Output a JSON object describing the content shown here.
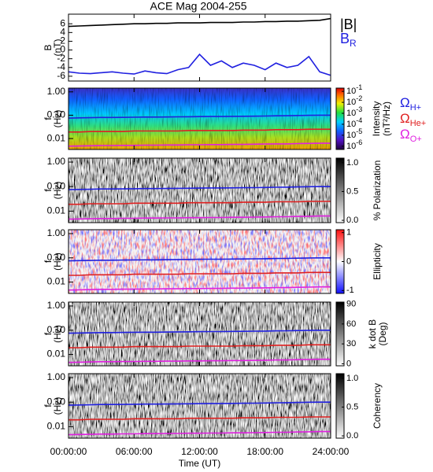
{
  "chart_data": [
    {
      "type": "line",
      "title": "ACE Mag 2004-255",
      "ylabel": [
        "B",
        "(nT)"
      ],
      "x": [
        0,
        1,
        2,
        3,
        4,
        5,
        6,
        7,
        8,
        9,
        10,
        11,
        12,
        13,
        14,
        15,
        16,
        17,
        18,
        19,
        20,
        21,
        22,
        23,
        24
      ],
      "xlim": [
        0,
        24
      ],
      "ylim": [
        -7.1,
        8.2
      ],
      "yticks": [
        -6,
        -4,
        -2,
        0,
        2,
        4,
        6
      ],
      "series": [
        {
          "name": "|B|",
          "color": "#000000",
          "values": [
            5.4,
            5.5,
            5.6,
            5.7,
            5.8,
            5.9,
            6.0,
            6.0,
            6.1,
            6.1,
            6.2,
            6.2,
            6.2,
            6.3,
            6.3,
            6.3,
            6.4,
            6.4,
            6.5,
            6.5,
            6.6,
            6.6,
            6.7,
            6.8,
            7.2
          ]
        },
        {
          "name": "B",
          "subscript": "R",
          "color": "#2020e0",
          "values": [
            -5.0,
            -5.3,
            -5.4,
            -5.2,
            -5.0,
            -5.3,
            -5.5,
            -4.8,
            -5.2,
            -5.4,
            -4.5,
            -4.0,
            -1.0,
            -3.5,
            -2.5,
            -4.0,
            -3.0,
            -3.5,
            -4.5,
            -3.0,
            -4.0,
            -3.5,
            -1.5,
            -5.0,
            -5.8
          ]
        }
      ]
    },
    {
      "type": "spectrogram",
      "ylabel": [
        "f",
        "(Hz)"
      ],
      "log_y": true,
      "ylim": [
        0.0034,
        1.45
      ],
      "yticks": [
        {
          "value": 1,
          "label": "1.00"
        },
        {
          "value": 0.1,
          "label": "0.10"
        },
        {
          "value": 0.01,
          "label": "0.01"
        }
      ],
      "colorbar": {
        "label": [
          "Intensity",
          "(nT²/Hz)"
        ],
        "log": true,
        "clim": [
          5e-07,
          0.2
        ],
        "colormap": "rainbow",
        "ticks": [
          {
            "value": 0.1,
            "label": "10",
            "exponent": "-1"
          },
          {
            "value": 0.01,
            "label": "10",
            "exponent": "-2"
          },
          {
            "value": 0.001,
            "label": "10",
            "exponent": "-3"
          },
          {
            "value": 0.0001,
            "label": "10",
            "exponent": "-4"
          },
          {
            "value": 1e-05,
            "label": "10",
            "exponent": "-5"
          },
          {
            "value": 1e-06,
            "label": "10",
            "exponent": "-6"
          }
        ]
      },
      "x": [
        0,
        1,
        2,
        3,
        4,
        5,
        6,
        7,
        8,
        9,
        10,
        11,
        12,
        13,
        14,
        15,
        16,
        17,
        18,
        19,
        20,
        21,
        22,
        23,
        24
      ],
      "series": [
        {
          "name": "Ω",
          "subscript": "H+",
          "color": "#2020e0",
          "values": [
            0.075,
            0.077,
            0.078,
            0.08,
            0.08,
            0.081,
            0.082,
            0.083,
            0.083,
            0.084,
            0.085,
            0.086,
            0.087,
            0.088,
            0.088,
            0.089,
            0.09,
            0.091,
            0.092,
            0.094,
            0.095,
            0.097,
            0.099,
            0.1,
            0.1
          ]
        },
        {
          "name": "Ω",
          "subscript": "He+",
          "color": "#e02020",
          "values": [
            0.019,
            0.019,
            0.02,
            0.02,
            0.02,
            0.02,
            0.021,
            0.021,
            0.021,
            0.021,
            0.021,
            0.022,
            0.022,
            0.022,
            0.022,
            0.022,
            0.023,
            0.023,
            0.023,
            0.024,
            0.024,
            0.024,
            0.025,
            0.025,
            0.025
          ]
        },
        {
          "name": "Ω",
          "subscript": "O+",
          "color": "#e020e0",
          "values": [
            0.0047,
            0.0048,
            0.0049,
            0.005,
            0.005,
            0.0051,
            0.0051,
            0.0052,
            0.0052,
            0.0053,
            0.0053,
            0.0054,
            0.0054,
            0.0055,
            0.0055,
            0.0056,
            0.0056,
            0.0057,
            0.0058,
            0.0059,
            0.0059,
            0.0061,
            0.0062,
            0.0063,
            0.0063
          ]
        }
      ]
    },
    {
      "type": "spectrogram",
      "ylabel": [
        "f",
        "(Hz)"
      ],
      "log_y": true,
      "ylim": [
        0.0034,
        1.45
      ],
      "yticks": [
        {
          "value": 1,
          "label": "1.00"
        },
        {
          "value": 0.1,
          "label": "0.10"
        },
        {
          "value": 0.01,
          "label": "0.01"
        }
      ],
      "colorbar": {
        "label": [
          "% Polarization"
        ],
        "log": false,
        "clim": [
          -0.04,
          1.08
        ],
        "colormap": "gray",
        "ticks": [
          {
            "value": 1,
            "label": "1.0"
          },
          {
            "value": 0.5,
            "label": "0.5"
          },
          {
            "value": 0,
            "label": "0.0"
          }
        ]
      }
    },
    {
      "type": "spectrogram",
      "ylabel": [
        "f",
        "(Hz)"
      ],
      "log_y": true,
      "ylim": [
        0.0034,
        1.45
      ],
      "yticks": [
        {
          "value": 1,
          "label": "1.00"
        },
        {
          "value": 0.1,
          "label": "0.10"
        },
        {
          "value": 0.01,
          "label": "0.01"
        }
      ],
      "colorbar": {
        "label": [
          "Ellipticity"
        ],
        "log": false,
        "clim": [
          -1.1,
          1.1
        ],
        "colormap": "bwr",
        "ticks": [
          1,
          0,
          -1
        ]
      }
    },
    {
      "type": "spectrogram",
      "ylabel": [
        "f",
        "(Hz)"
      ],
      "log_y": true,
      "ylim": [
        0.0034,
        1.45
      ],
      "yticks": [
        {
          "value": 1,
          "label": "1.00"
        },
        {
          "value": 0.1,
          "label": "0.10"
        },
        {
          "value": 0.01,
          "label": "0.01"
        }
      ],
      "colorbar": {
        "label": [
          "k dot B",
          "(Deg)"
        ],
        "log": false,
        "clim": [
          -3,
          93
        ],
        "colormap": "gray",
        "ticks": [
          90,
          60,
          30,
          0
        ]
      }
    },
    {
      "type": "spectrogram",
      "ylabel": [
        "f",
        "(Hz)"
      ],
      "log_y": true,
      "ylim": [
        0.0034,
        1.45
      ],
      "yticks": [
        {
          "value": 1,
          "label": "1.00"
        },
        {
          "value": 0.1,
          "label": "0.10"
        },
        {
          "value": 0.01,
          "label": "0.01"
        }
      ],
      "colorbar": {
        "label": [
          "Coherency"
        ],
        "log": false,
        "clim": [
          -0.04,
          1.08
        ],
        "colormap": "gray",
        "ticks": [
          {
            "value": 1,
            "label": "1.0"
          },
          {
            "value": 0.5,
            "label": "0.5"
          },
          {
            "value": 0,
            "label": "0.0"
          }
        ]
      },
      "xlabel": "Time (UT)",
      "xlim": [
        0,
        24
      ],
      "xticks": [
        {
          "value": 0,
          "label": "00:00:00"
        },
        {
          "value": 6,
          "label": "06:00:00"
        },
        {
          "value": 12,
          "label": "12:00:00"
        },
        {
          "value": 18,
          "label": "18:00:00"
        },
        {
          "value": 24,
          "label": "24:00:00"
        }
      ]
    }
  ]
}
